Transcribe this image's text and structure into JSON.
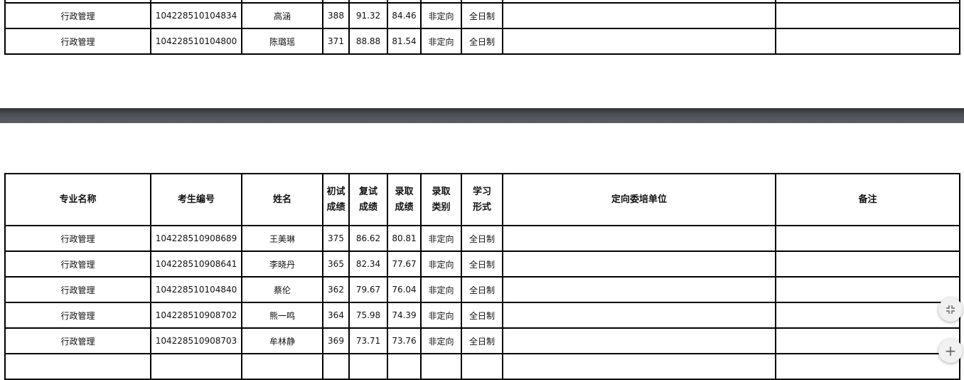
{
  "columns": [
    "专业名称",
    "考生编号",
    "姓名",
    "初试成绩",
    "复试成绩",
    "录取成绩",
    "录取类别",
    "学习形式",
    "定向委培单位",
    "备注"
  ],
  "page1_rows": [
    {
      "major": "行政管理",
      "id": "104228510104834",
      "name": "高涵",
      "initial": "388",
      "retest": "91.32",
      "final": "84.46",
      "category": "非定向",
      "mode": "全日制",
      "unit": "",
      "note": ""
    },
    {
      "major": "行政管理",
      "id": "104228510104800",
      "name": "陈璐瑶",
      "initial": "371",
      "retest": "88.88",
      "final": "81.54",
      "category": "非定向",
      "mode": "全日制",
      "unit": "",
      "note": ""
    }
  ],
  "page2_rows": [
    {
      "major": "行政管理",
      "id": "104228510908689",
      "name": "王美琳",
      "initial": "375",
      "retest": "86.62",
      "final": "80.81",
      "category": "非定向",
      "mode": "全日制",
      "unit": "",
      "note": ""
    },
    {
      "major": "行政管理",
      "id": "104228510908641",
      "name": "李晓丹",
      "initial": "365",
      "retest": "82.34",
      "final": "77.67",
      "category": "非定向",
      "mode": "全日制",
      "unit": "",
      "note": ""
    },
    {
      "major": "行政管理",
      "id": "104228510104840",
      "name": "蔡伦",
      "initial": "362",
      "retest": "79.67",
      "final": "76.04",
      "category": "非定向",
      "mode": "全日制",
      "unit": "",
      "note": ""
    },
    {
      "major": "行政管理",
      "id": "104228510908702",
      "name": "熊一鸣",
      "initial": "364",
      "retest": "75.98",
      "final": "74.39",
      "category": "非定向",
      "mode": "全日制",
      "unit": "",
      "note": ""
    },
    {
      "major": "行政管理",
      "id": "104228510908703",
      "name": "牟林静",
      "initial": "369",
      "retest": "73.71",
      "final": "73.76",
      "category": "非定向",
      "mode": "全日制",
      "unit": "",
      "note": ""
    }
  ],
  "controls": {
    "fit_icon": "collapse-icon",
    "zoom_in_icon": "plus-icon",
    "zoom_in_label": "+"
  }
}
